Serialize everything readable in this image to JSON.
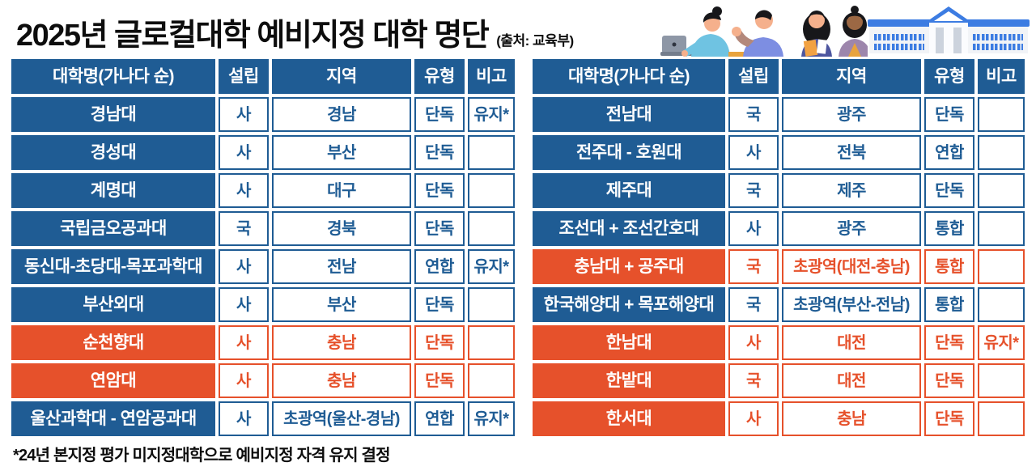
{
  "header": {
    "title": "2025년 글로컬대학 예비지정 대학 명단",
    "source": "(출처: 교육부)"
  },
  "columns": [
    "대학명(가나다 순)",
    "설립",
    "지역",
    "유형",
    "비고"
  ],
  "tables": [
    {
      "rows": [
        {
          "name": "경남대",
          "establishment": "사",
          "region": "경남",
          "type": "단독",
          "note": "유지*",
          "highlight": false
        },
        {
          "name": "경성대",
          "establishment": "사",
          "region": "부산",
          "type": "단독",
          "note": "",
          "highlight": false
        },
        {
          "name": "계명대",
          "establishment": "사",
          "region": "대구",
          "type": "단독",
          "note": "",
          "highlight": false
        },
        {
          "name": "국립금오공과대",
          "establishment": "국",
          "region": "경북",
          "type": "단독",
          "note": "",
          "highlight": false
        },
        {
          "name": "동신대-초당대-목포과학대",
          "establishment": "사",
          "region": "전남",
          "type": "연합",
          "note": "유지*",
          "highlight": false
        },
        {
          "name": "부산외대",
          "establishment": "사",
          "region": "부산",
          "type": "단독",
          "note": "",
          "highlight": false
        },
        {
          "name": "순천향대",
          "establishment": "사",
          "region": "충남",
          "type": "단독",
          "note": "",
          "highlight": true
        },
        {
          "name": "연암대",
          "establishment": "사",
          "region": "충남",
          "type": "단독",
          "note": "",
          "highlight": true
        },
        {
          "name": "울산과학대 - 연암공과대",
          "establishment": "사",
          "region": "초광역(울산-경남)",
          "type": "연합",
          "note": "유지*",
          "highlight": false
        }
      ]
    },
    {
      "rows": [
        {
          "name": "전남대",
          "establishment": "국",
          "region": "광주",
          "type": "단독",
          "note": "",
          "highlight": false
        },
        {
          "name": "전주대 - 호원대",
          "establishment": "사",
          "region": "전북",
          "type": "연합",
          "note": "",
          "highlight": false
        },
        {
          "name": "제주대",
          "establishment": "국",
          "region": "제주",
          "type": "단독",
          "note": "",
          "highlight": false
        },
        {
          "name": "조선대 + 조선간호대",
          "establishment": "사",
          "region": "광주",
          "type": "통합",
          "note": "",
          "highlight": false
        },
        {
          "name": "충남대 + 공주대",
          "establishment": "국",
          "region": "초광역(대전-충남)",
          "type": "통합",
          "note": "",
          "highlight": true
        },
        {
          "name": "한국해양대 + 목포해양대",
          "establishment": "국",
          "region": "초광역(부산-전남)",
          "type": "통합",
          "note": "",
          "highlight": false
        },
        {
          "name": "한남대",
          "establishment": "사",
          "region": "대전",
          "type": "단독",
          "note": "유지*",
          "highlight": true
        },
        {
          "name": "한밭대",
          "establishment": "국",
          "region": "대전",
          "type": "단독",
          "note": "",
          "highlight": true
        },
        {
          "name": "한서대",
          "establishment": "사",
          "region": "충남",
          "type": "단독",
          "note": "",
          "highlight": true
        }
      ]
    }
  ],
  "footnote": "*24년 본지정 평가 미지정대학으로 예비지정 자격 유지 결정",
  "colors": {
    "table_blue": "#1f5c94",
    "highlight_orange": "#e6512b",
    "building_blue": "#3c7ce2"
  }
}
